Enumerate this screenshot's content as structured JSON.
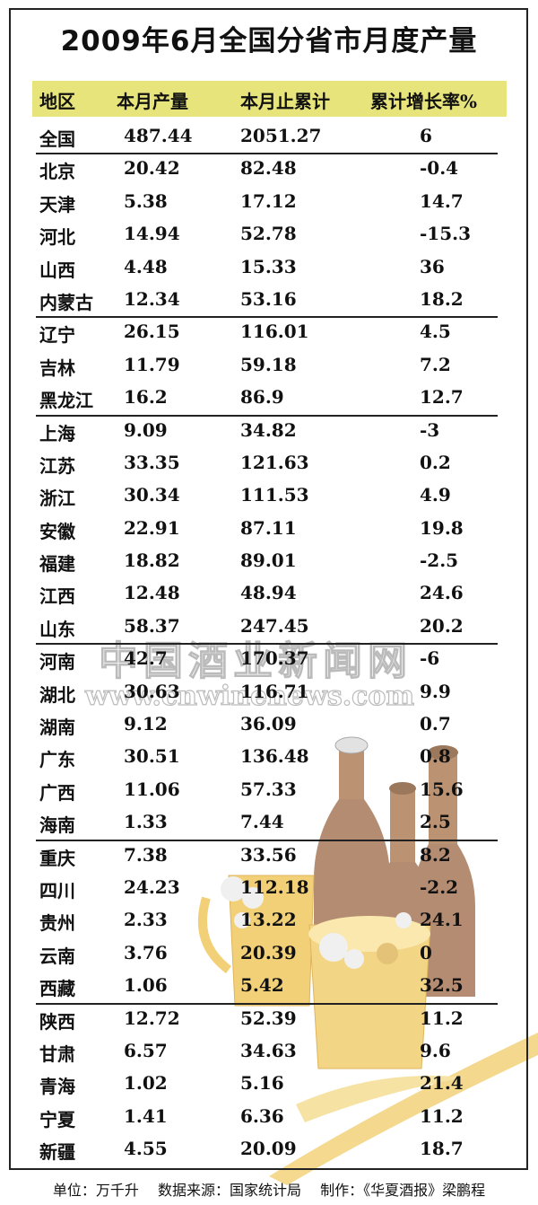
{
  "title": "2009年6月全国分省市月度产量",
  "columns": [
    "地区",
    "本月产量",
    "本月止累计",
    "累计增长率%"
  ],
  "rows": [
    [
      "全国",
      "487.44",
      "2051.27",
      "6"
    ],
    [
      "北京",
      "20.42",
      "82.48",
      "-0.4"
    ],
    [
      "天津",
      "5.38",
      "17.12",
      "14.7"
    ],
    [
      "河北",
      "14.94",
      "52.78",
      "-15.3"
    ],
    [
      "山西",
      "4.48",
      "15.33",
      "36"
    ],
    [
      "内蒙古",
      "12.34",
      "53.16",
      "18.2"
    ],
    [
      "辽宁",
      "26.15",
      "116.01",
      "4.5"
    ],
    [
      "吉林",
      "11.79",
      "59.18",
      "7.2"
    ],
    [
      "黑龙江",
      "16.2",
      "86.9",
      "12.7"
    ],
    [
      "上海",
      "9.09",
      "34.82",
      "-3"
    ],
    [
      "江苏",
      "33.35",
      "121.63",
      "0.2"
    ],
    [
      "浙江",
      "30.34",
      "111.53",
      "4.9"
    ],
    [
      "安徽",
      "22.91",
      "87.11",
      "19.8"
    ],
    [
      "福建",
      "18.82",
      "89.01",
      "-2.5"
    ],
    [
      "江西",
      "12.48",
      "48.94",
      "24.6"
    ],
    [
      "山东",
      "58.37",
      "247.45",
      "20.2"
    ],
    [
      "河南",
      "42.7",
      "170.37",
      "-6"
    ],
    [
      "湖北",
      "30.63",
      "116.71",
      "9.9"
    ],
    [
      "湖南",
      "9.12",
      "36.09",
      "0.7"
    ],
    [
      "广东",
      "30.51",
      "136.48",
      "0.8"
    ],
    [
      "广西",
      "11.06",
      "57.33",
      "15.6"
    ],
    [
      "海南",
      "1.33",
      "7.44",
      "2.5"
    ],
    [
      "重庆",
      "7.38",
      "33.56",
      "8.2"
    ],
    [
      "四川",
      "24.23",
      "112.18",
      "-2.2"
    ],
    [
      "贵州",
      "2.33",
      "13.22",
      "24.1"
    ],
    [
      "云南",
      "3.76",
      "20.39",
      "0"
    ],
    [
      "西藏",
      "1.06",
      "5.42",
      "32.5"
    ],
    [
      "陕西",
      "12.72",
      "52.39",
      "11.2"
    ],
    [
      "甘肃",
      "6.57",
      "34.63",
      "9.6"
    ],
    [
      "青海",
      "1.02",
      "5.16",
      "21.4"
    ],
    [
      "宁夏",
      "1.41",
      "6.36",
      "11.2"
    ],
    [
      "新疆",
      "4.55",
      "20.09",
      "18.7"
    ]
  ],
  "footer": {
    "unit": "单位：万千升",
    "source": "数据来源：国家统计局",
    "maker": "制作：《华夏酒报》梁鹏程"
  },
  "watermark": {
    "name": "中国酒业新闻网",
    "url": "www.cnwinenews.com"
  },
  "colors": {
    "header_bg": "#e6e47a",
    "bottle": "#b0805a",
    "mug": "#f0c860"
  }
}
